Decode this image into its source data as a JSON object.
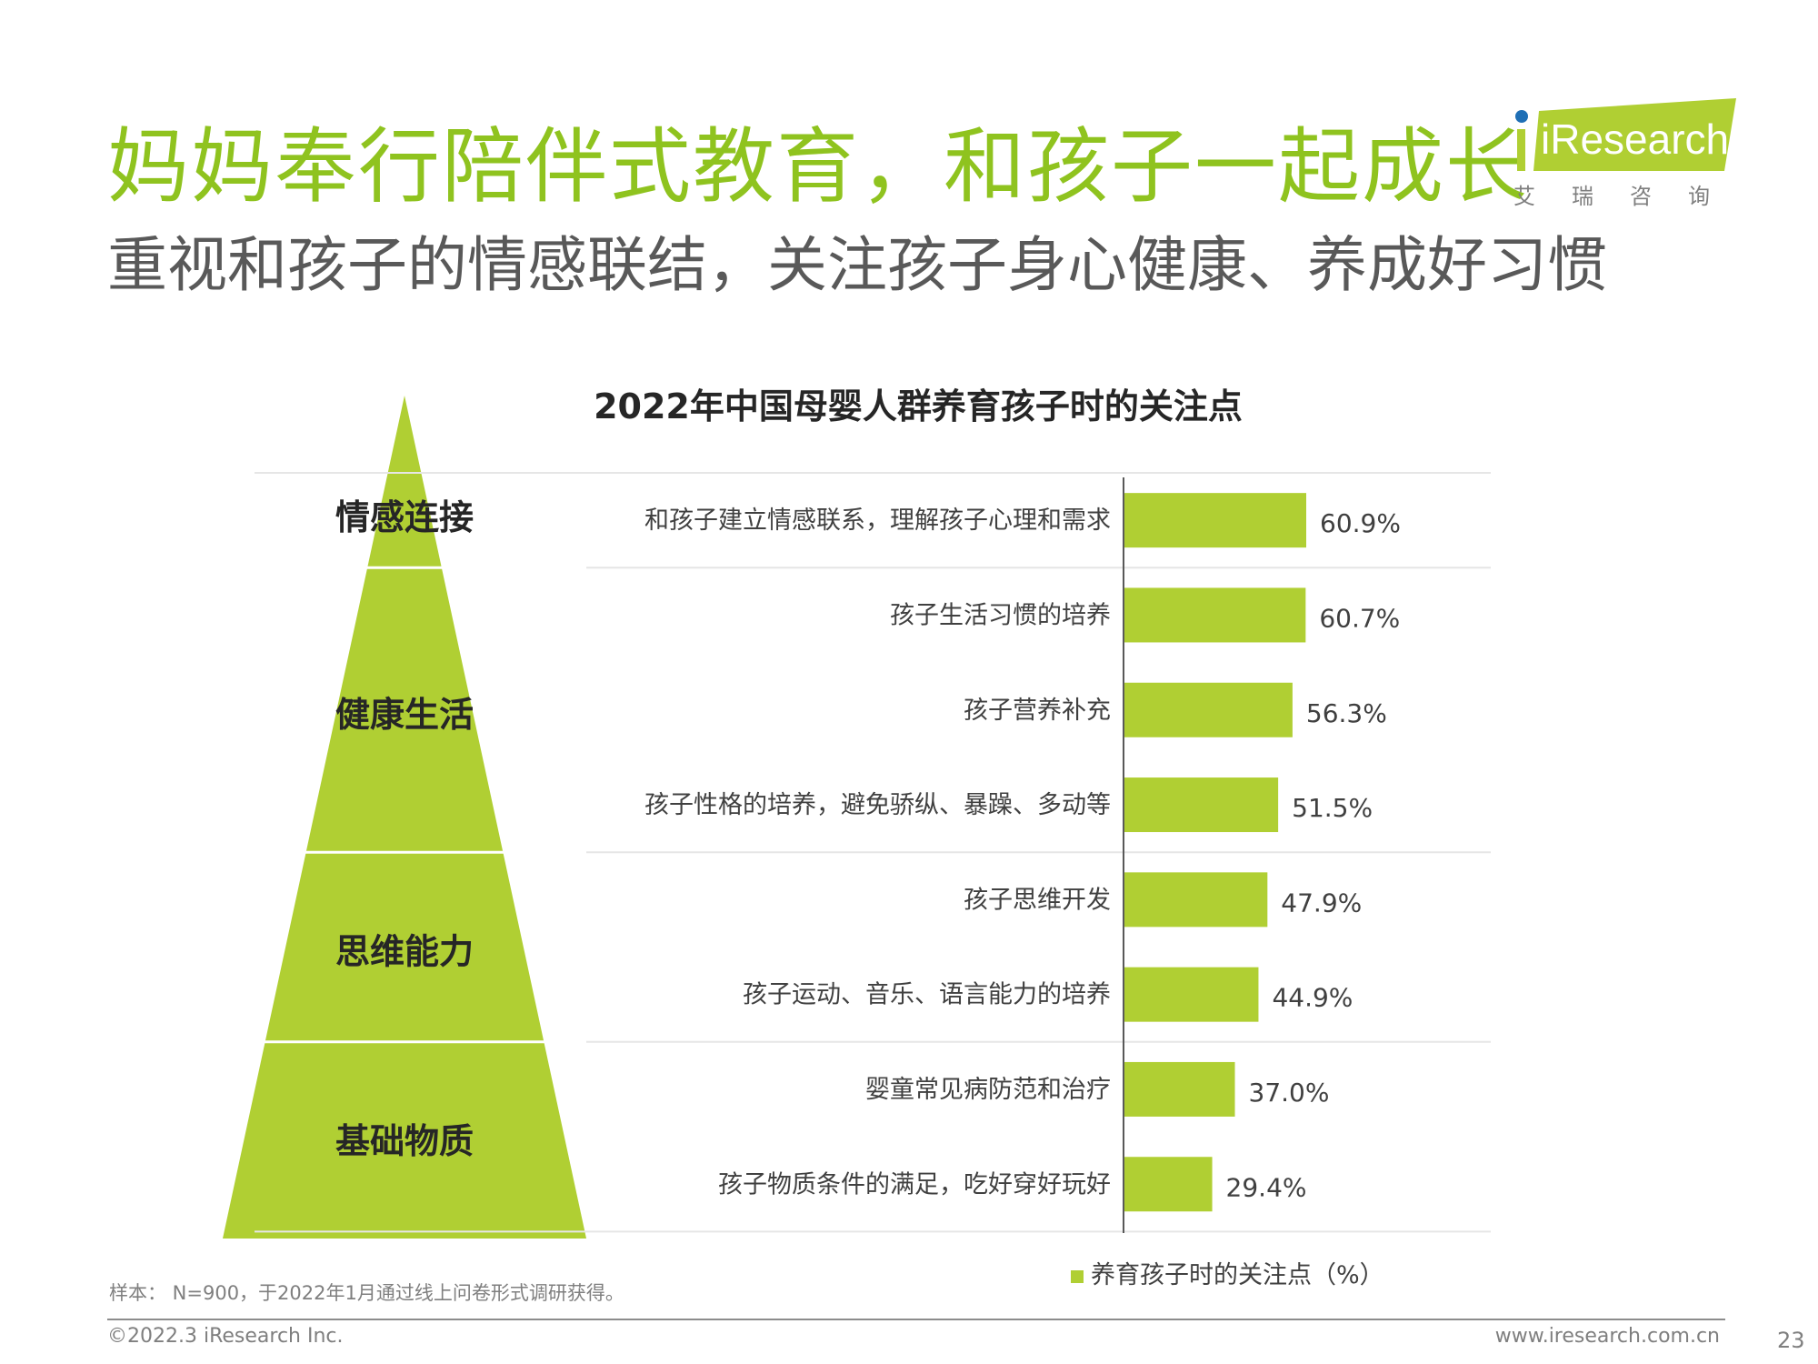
{
  "page": {
    "title": "妈妈奉行陪伴式教育，和孩子一起成长",
    "subtitle": "重视和孩子的情感联结，关注孩子身心健康、养成好习惯",
    "logo_name": "iResearch",
    "logo_cn": "艾瑞咨询",
    "sample_note": "样本： N=900，于2022年1月通过线上问卷形式调研获得。",
    "copyright": "©2022.3 iResearch Inc.",
    "website": "www.iresearch.com.cn",
    "page_number": "23"
  },
  "colors": {
    "accent": "#8fc31f",
    "bar": "#b0cf33",
    "pyramid": "#b0cf33",
    "title": "#8fc31f",
    "text": "#595959"
  },
  "chart_data": {
    "type": "bar",
    "orientation": "horizontal",
    "title": "2022年中国母婴人群养育孩子时的关注点",
    "categories": [
      "和孩子建立情感联系，理解孩子心理和需求",
      "孩子生活习惯的培养",
      "孩子营养补充",
      "孩子性格的培养，避免骄纵、暴躁、多动等",
      "孩子思维开发",
      "孩子运动、音乐、语言能力的培养",
      "婴童常见病防范和治疗",
      "孩子物质条件的满足，吃好穿好玩好"
    ],
    "series": [
      {
        "name": "养育孩子时的关注点（%）",
        "values": [
          60.9,
          60.7,
          56.3,
          51.5,
          47.9,
          44.9,
          37.0,
          29.4
        ]
      }
    ],
    "value_labels": [
      "60.9%",
      "60.7%",
      "56.3%",
      "51.5%",
      "47.9%",
      "44.9%",
      "37.0%",
      "29.4%"
    ],
    "groups": [
      {
        "label": "情感连接",
        "count": 1
      },
      {
        "label": "健康生活",
        "count": 3
      },
      {
        "label": "思维能力",
        "count": 2
      },
      {
        "label": "基础物质",
        "count": 2
      }
    ],
    "legend": "养育孩子时的关注点（%）",
    "legend_position": "bottom",
    "grid": false
  }
}
